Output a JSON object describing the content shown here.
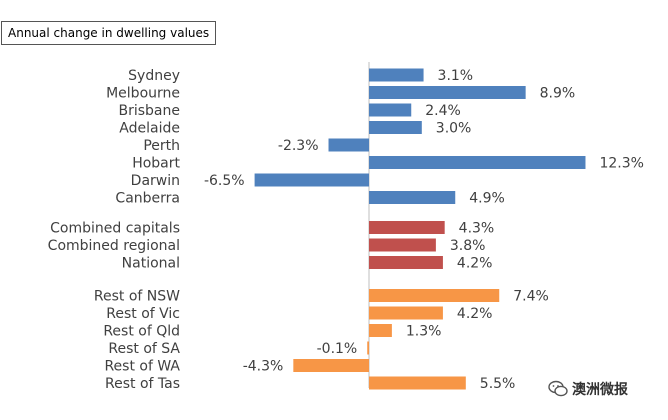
{
  "chart_data": {
    "type": "bar",
    "orientation": "horizontal",
    "title": "Annual change in dwelling values",
    "xlabel": "",
    "ylabel": "",
    "grid": false,
    "xlim": [
      -7.5,
      14
    ],
    "groups": [
      {
        "color": "#4F81BD",
        "categories": [
          "Sydney",
          "Melbourne",
          "Brisbane",
          "Adelaide",
          "Perth",
          "Hobart",
          "Darwin",
          "Canberra"
        ],
        "values": [
          3.1,
          8.9,
          2.4,
          3.0,
          -2.3,
          12.3,
          -6.5,
          4.9
        ],
        "labels": [
          "3.1%",
          "8.9%",
          "2.4%",
          "3.0%",
          "-2.3%",
          "12.3%",
          "-6.5%",
          "4.9%"
        ]
      },
      {
        "color": "#C0504D",
        "categories": [
          "Combined capitals",
          "Combined regional",
          "National"
        ],
        "values": [
          4.3,
          3.8,
          4.2
        ],
        "labels": [
          "4.3%",
          "3.8%",
          "4.2%"
        ]
      },
      {
        "color": "#F79646",
        "categories": [
          "Rest of NSW",
          "Rest of Vic",
          "Rest of Qld",
          "Rest of SA",
          "Rest of WA",
          "Rest of Tas"
        ],
        "values": [
          7.4,
          4.2,
          1.3,
          -0.1,
          -4.3,
          5.5
        ],
        "labels": [
          "7.4%",
          "4.2%",
          "1.3%",
          "-0.1%",
          "-4.3%",
          "5.5%"
        ]
      }
    ]
  },
  "watermark": {
    "text": "澳洲微报",
    "icon": "wechat-icon"
  }
}
